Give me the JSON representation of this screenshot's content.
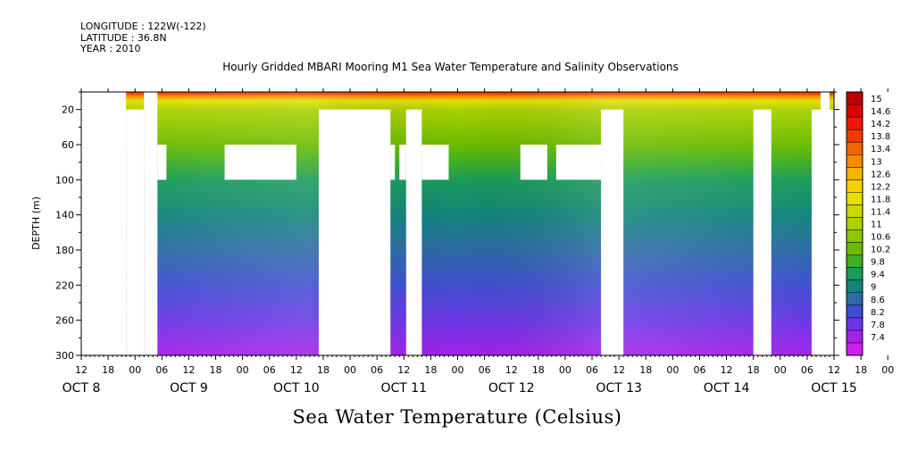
{
  "header": {
    "longitude": "LONGITUDE : 122W(-122)",
    "latitude": "LATITUDE : 36.8N",
    "year": "YEAR : 2010"
  },
  "chart_data": {
    "type": "heatmap",
    "title": "Hourly Gridded MBARI Mooring M1 Sea Water Temperature and Salinity Observations",
    "xlabel": "",
    "ylabel": "DEPTH (m)",
    "colorbar_title": "Sea Water Temperature (Celsius)",
    "x_hour_ticks": [
      "12",
      "18",
      "00",
      "06",
      "12",
      "18",
      "00",
      "06",
      "12",
      "18",
      "00",
      "06",
      "12",
      "18",
      "00",
      "06",
      "12",
      "18",
      "00",
      "06",
      "12",
      "18",
      "00",
      "06",
      "12",
      "18",
      "00",
      "06",
      "12",
      "18",
      "00",
      "06",
      "12"
    ],
    "x_day_labels": [
      "OCT  8",
      "OCT  9",
      "OCT 10",
      "OCT 11",
      "OCT 12",
      "OCT 13",
      "OCT 14",
      "OCT 15"
    ],
    "xlim_hours_since_oct8_00": [
      12,
      180
    ],
    "y_tick_labels": [
      "20",
      "60",
      "100",
      "140",
      "180",
      "220",
      "260",
      "300"
    ],
    "ylim": [
      300,
      0
    ],
    "colorbar_levels": [
      "15",
      "14.6",
      "14.2",
      "13.8",
      "13.4",
      "13",
      "12.6",
      "12.2",
      "11.8",
      "11.4",
      "11",
      "10.6",
      "10.2",
      "9.8",
      "9.4",
      "9",
      "8.6",
      "8.2",
      "7.8",
      "7.4"
    ],
    "colorbar_colors": [
      "#b80000",
      "#d90000",
      "#ec1a00",
      "#f23a00",
      "#f56400",
      "#f88a00",
      "#f8b100",
      "#f2d200",
      "#e4e000",
      "#c8d900",
      "#aad200",
      "#8cc600",
      "#6cbb00",
      "#3fae22",
      "#1a9b5a",
      "#12847a",
      "#2d6aa6",
      "#3f4fd0",
      "#6a37e4",
      "#a422ea",
      "#cc1ff0"
    ],
    "profile_by_depth": [
      {
        "depth": 0,
        "temperature": 14.4
      },
      {
        "depth": 5,
        "temperature": 13.2
      },
      {
        "depth": 10,
        "temperature": 12.0
      },
      {
        "depth": 20,
        "temperature": 11.2
      },
      {
        "depth": 40,
        "temperature": 10.7
      },
      {
        "depth": 60,
        "temperature": 10.3
      },
      {
        "depth": 80,
        "temperature": 10.0
      },
      {
        "depth": 100,
        "temperature": 9.7
      },
      {
        "depth": 140,
        "temperature": 9.4
      },
      {
        "depth": 180,
        "temperature": 9.0
      },
      {
        "depth": 220,
        "temperature": 8.6
      },
      {
        "depth": 260,
        "temperature": 8.2
      },
      {
        "depth": 300,
        "temperature": 7.7
      }
    ],
    "missing_data_blocks": [
      {
        "t0": 12,
        "t1": 22,
        "d0": 0,
        "d1": 300
      },
      {
        "t0": 22,
        "t1": 26,
        "d0": 20,
        "d1": 300
      },
      {
        "t0": 26,
        "t1": 29,
        "d0": 0,
        "d1": 300
      },
      {
        "t0": 29,
        "t1": 31,
        "d0": 60,
        "d1": 100
      },
      {
        "t0": 44,
        "t1": 60,
        "d0": 60,
        "d1": 100
      },
      {
        "t0": 65,
        "t1": 81,
        "d0": 20,
        "d1": 300
      },
      {
        "t0": 81,
        "t1": 82,
        "d0": 60,
        "d1": 100
      },
      {
        "t0": 83,
        "t1": 84.5,
        "d0": 60,
        "d1": 100
      },
      {
        "t0": 84.5,
        "t1": 88,
        "d0": 20,
        "d1": 300
      },
      {
        "t0": 88,
        "t1": 94,
        "d0": 60,
        "d1": 100
      },
      {
        "t0": 110,
        "t1": 116,
        "d0": 60,
        "d1": 100
      },
      {
        "t0": 118,
        "t1": 128,
        "d0": 60,
        "d1": 100
      },
      {
        "t0": 128,
        "t1": 133,
        "d0": 20,
        "d1": 300
      },
      {
        "t0": 162,
        "t1": 166,
        "d0": 20,
        "d1": 300
      },
      {
        "t0": 175,
        "t1": 180,
        "d0": 20,
        "d1": 300
      },
      {
        "t0": 177,
        "t1": 179,
        "d0": 0,
        "d1": 20
      }
    ],
    "grid": false
  }
}
